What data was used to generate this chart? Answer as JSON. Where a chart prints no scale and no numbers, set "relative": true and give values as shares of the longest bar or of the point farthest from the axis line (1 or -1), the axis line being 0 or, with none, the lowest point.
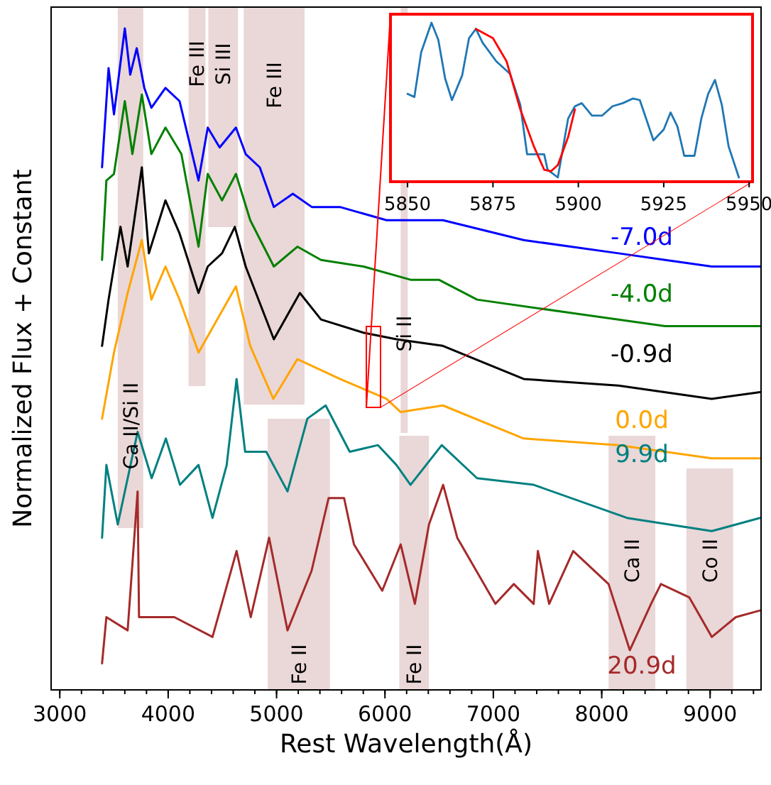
{
  "chart_data": [
    {
      "type": "line",
      "xlabel": "Rest Wavelength(Å)",
      "ylabel": "Normalized Flux + Constant",
      "relative": true,
      "xlim": [
        2920,
        9470
      ],
      "xticks": [
        3000,
        4000,
        5000,
        6000,
        7000,
        8000,
        9000
      ],
      "grid": false,
      "legend": false,
      "marker": "none",
      "line_style": "solid",
      "series": [
        {
          "name": "-7.0d",
          "color": "#0000ff",
          "x": [
            3390,
            3450,
            3500,
            3600,
            3650,
            3710,
            3780,
            3845,
            3975,
            4105,
            4280,
            4365,
            4475,
            4625,
            4715,
            4845,
            4975,
            5150,
            5325,
            5585,
            6015,
            6535,
            7280,
            8155,
            8585,
            9015,
            9460
          ],
          "values": [
            0.79,
            0.94,
            0.87,
            1.0,
            0.93,
            0.97,
            0.91,
            0.88,
            0.91,
            0.89,
            0.77,
            0.85,
            0.82,
            0.85,
            0.81,
            0.79,
            0.73,
            0.75,
            0.73,
            0.73,
            0.71,
            0.71,
            0.68,
            0.66,
            0.65,
            0.64,
            0.64
          ]
        },
        {
          "name": "-4.0d",
          "color": "#008000",
          "x": [
            3390,
            3430,
            3500,
            3600,
            3670,
            3757,
            3845,
            3975,
            4122,
            4280,
            4365,
            4497,
            4625,
            4757,
            4975,
            5192,
            5410,
            5802,
            6236,
            6497,
            6850,
            7711,
            8585,
            9460
          ],
          "values": [
            0.65,
            0.77,
            0.78,
            0.89,
            0.81,
            0.9,
            0.81,
            0.85,
            0.81,
            0.67,
            0.78,
            0.74,
            0.78,
            0.71,
            0.64,
            0.67,
            0.65,
            0.64,
            0.62,
            0.62,
            0.59,
            0.57,
            0.55,
            0.55
          ]
        },
        {
          "name": "-0.9d",
          "color": "#000000",
          "x": [
            3390,
            3450,
            3560,
            3626,
            3757,
            3822,
            3975,
            4105,
            4280,
            4365,
            4497,
            4615,
            4715,
            4975,
            5215,
            5410,
            5802,
            6106,
            6535,
            7280,
            8155,
            9015,
            9460
          ],
          "values": [
            0.52,
            0.59,
            0.7,
            0.64,
            0.79,
            0.66,
            0.74,
            0.69,
            0.6,
            0.64,
            0.66,
            0.7,
            0.64,
            0.53,
            0.6,
            0.56,
            0.54,
            0.53,
            0.52,
            0.47,
            0.46,
            0.44,
            0.45
          ]
        },
        {
          "name": "0.0d",
          "color": "#ffa500",
          "x": [
            3390,
            3500,
            3626,
            3757,
            3845,
            3975,
            4105,
            4280,
            4625,
            4757,
            4970,
            5192,
            5585,
            6015,
            6145,
            6535,
            7280,
            8155,
            9015,
            9460
          ],
          "values": [
            0.41,
            0.51,
            0.6,
            0.68,
            0.59,
            0.64,
            0.59,
            0.51,
            0.61,
            0.52,
            0.44,
            0.5,
            0.47,
            0.44,
            0.42,
            0.43,
            0.38,
            0.37,
            0.35,
            0.35
          ]
        },
        {
          "name": "9.9d",
          "color": "#008080",
          "x": [
            3390,
            3430,
            3535,
            3718,
            3848,
            3979,
            4109,
            4280,
            4409,
            4540,
            4631,
            4710,
            4905,
            5101,
            5284,
            5453,
            5675,
            5936,
            6106,
            6236,
            6524,
            6850,
            7372,
            8233,
            9015,
            9460
          ],
          "values": [
            0.23,
            0.34,
            0.25,
            0.39,
            0.32,
            0.38,
            0.31,
            0.34,
            0.26,
            0.34,
            0.47,
            0.36,
            0.36,
            0.3,
            0.41,
            0.43,
            0.36,
            0.37,
            0.34,
            0.31,
            0.37,
            0.32,
            0.31,
            0.26,
            0.24,
            0.26
          ]
        },
        {
          "name": "20.9d",
          "color": "#a52a2a",
          "x": [
            3390,
            3430,
            3626,
            3718,
            3731,
            4057,
            4409,
            4631,
            4762,
            4931,
            5101,
            5323,
            5480,
            5623,
            5714,
            5975,
            6145,
            6276,
            6406,
            6537,
            6667,
            7019,
            7189,
            7372,
            7411,
            7515,
            7737,
            8063,
            8259,
            8455,
            8546,
            8807,
            9016,
            9237,
            9460
          ],
          "values": [
            0.04,
            0.11,
            0.09,
            0.3,
            0.11,
            0.11,
            0.08,
            0.21,
            0.11,
            0.23,
            0.09,
            0.18,
            0.29,
            0.29,
            0.22,
            0.15,
            0.22,
            0.13,
            0.25,
            0.31,
            0.23,
            0.13,
            0.16,
            0.13,
            0.21,
            0.13,
            0.21,
            0.16,
            0.06,
            0.13,
            0.16,
            0.14,
            0.08,
            0.11,
            0.12
          ]
        }
      ],
      "bands": [
        {
          "axis": "x",
          "from": 3535,
          "to": 3770,
          "label": "Ca II/Si II",
          "color": "#e8d3d3"
        },
        {
          "axis": "x",
          "from": 4188,
          "to": 4344,
          "label": "Fe III",
          "color": "#e8d3d3"
        },
        {
          "axis": "x",
          "from": 4370,
          "to": 4644,
          "label": "Si III",
          "color": "#e8d3d3"
        },
        {
          "axis": "x",
          "from": 4697,
          "to": 5258,
          "label": "Fe III",
          "color": "#e8d3d3"
        },
        {
          "axis": "x",
          "from": 6145,
          "to": 6210,
          "label": "Si II",
          "color": "#e8d3d3"
        },
        {
          "axis": "x",
          "from": 4918,
          "to": 5492,
          "label": "Fe II",
          "color": "#e8d3d3"
        },
        {
          "axis": "x",
          "from": 6132,
          "to": 6406,
          "label": "Fe II",
          "color": "#e8d3d3"
        },
        {
          "axis": "x",
          "from": 8063,
          "to": 8494,
          "label": "Ca II",
          "color": "#e8d3d3"
        },
        {
          "axis": "x",
          "from": 8781,
          "to": 9212,
          "label": "Co II",
          "color": "#e8d3d3"
        }
      ]
    },
    {
      "type": "line",
      "relative": true,
      "xlim": [
        5845,
        5951
      ],
      "xticks": [
        5850,
        5875,
        5900,
        5925,
        5950
      ],
      "tick_labels": "x",
      "grid": false,
      "legend": false,
      "marker": "none",
      "line_style": "solid",
      "series": [
        {
          "color": "#1f77b4",
          "x": [
            5850,
            5852,
            5854,
            5857,
            5859,
            5861,
            5863,
            5866,
            5868,
            5870,
            5872,
            5876,
            5880,
            5883,
            5885,
            5890,
            5891,
            5894,
            5897,
            5899,
            5901,
            5904,
            5907,
            5910,
            5913,
            5916,
            5918,
            5922,
            5925,
            5927,
            5929,
            5931,
            5934,
            5936,
            5938,
            5940,
            5942,
            5944,
            5947
          ],
          "values": [
            0.54,
            0.52,
            0.81,
            1.0,
            0.89,
            0.64,
            0.5,
            0.66,
            0.9,
            0.96,
            0.87,
            0.75,
            0.67,
            0.47,
            0.15,
            0.15,
            0.05,
            0,
            0.38,
            0.46,
            0.48,
            0.4,
            0.4,
            0.46,
            0.48,
            0.51,
            0.5,
            0.24,
            0.31,
            0.42,
            0.33,
            0.14,
            0.14,
            0.38,
            0.54,
            0.63,
            0.47,
            0.2,
            0
          ]
        },
        {
          "color": "#ff0000",
          "x": [
            5870,
            5875,
            5879,
            5883,
            5887,
            5890,
            5892,
            5894,
            5897,
            5899
          ],
          "values": [
            0.96,
            0.9,
            0.75,
            0.44,
            0.2,
            0.05,
            0.04,
            0.08,
            0.26,
            0.44
          ]
        }
      ]
    }
  ]
}
